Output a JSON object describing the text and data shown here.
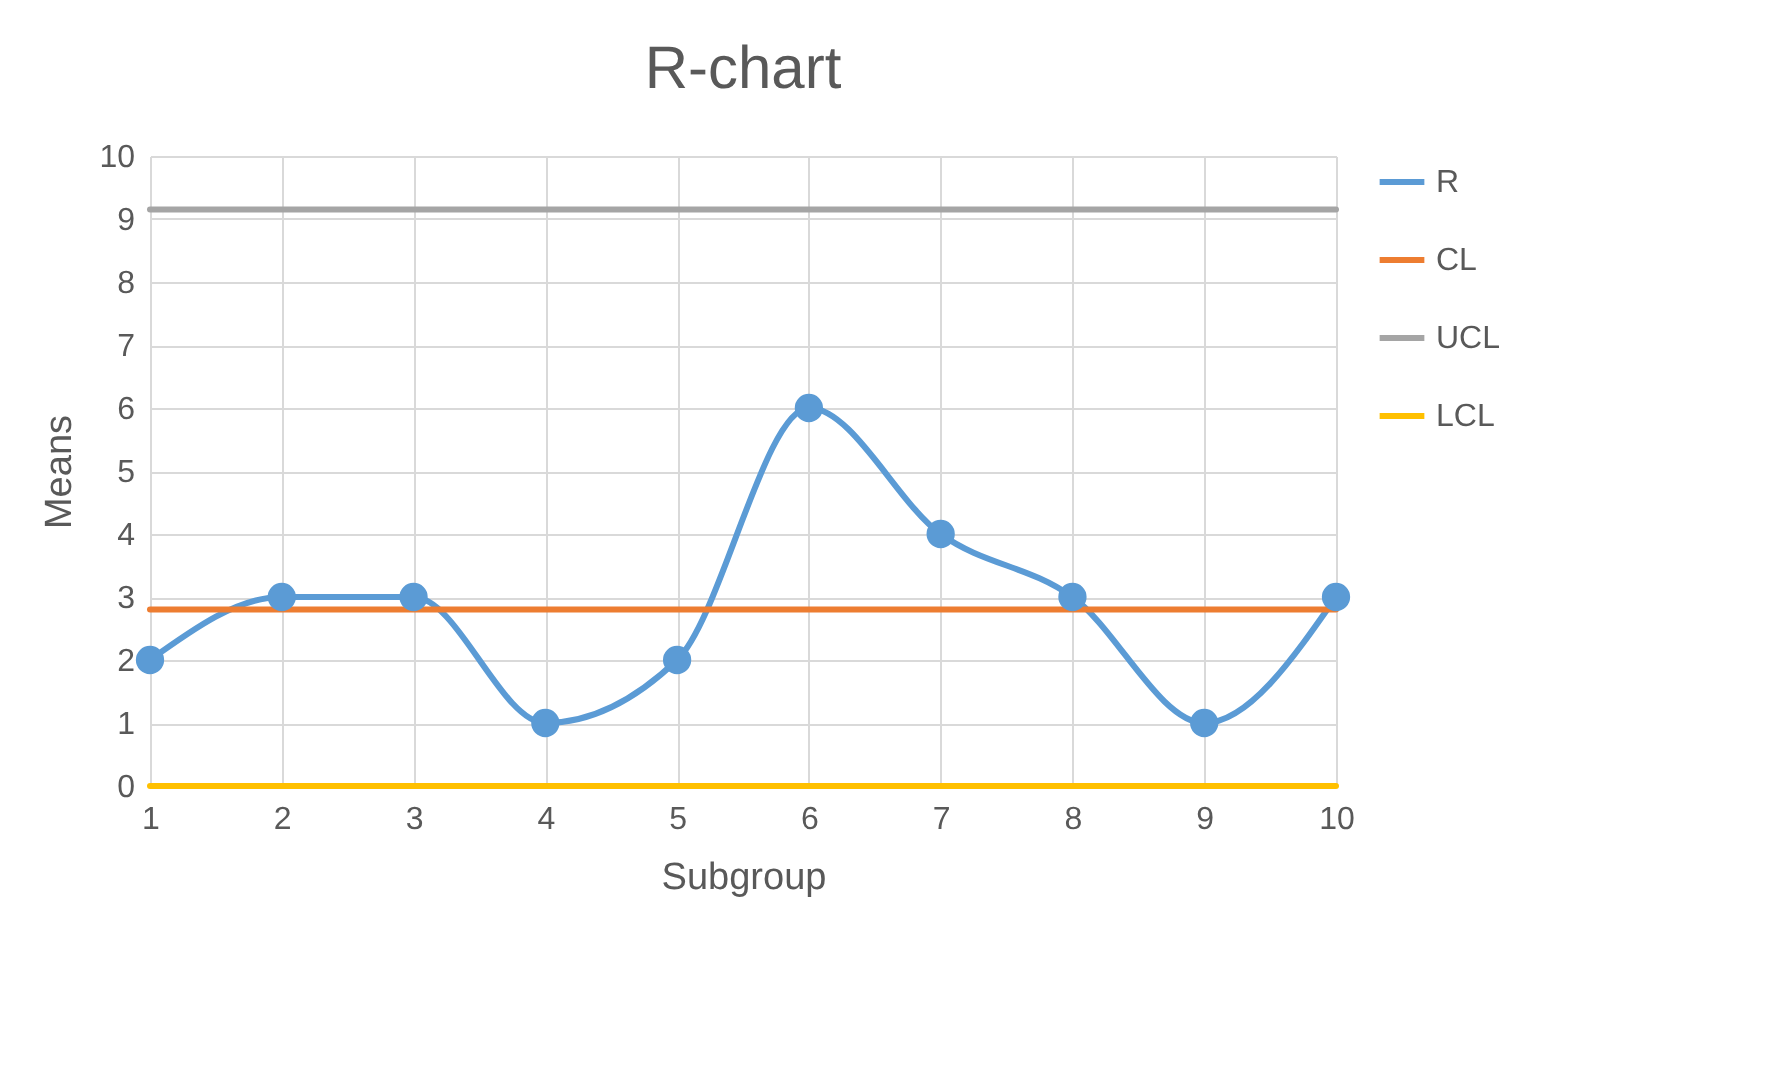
{
  "chart_data": {
    "type": "line",
    "title": "R-chart",
    "xlabel": "Subgroup",
    "ylabel": "Means",
    "categories": [
      "1",
      "2",
      "3",
      "4",
      "5",
      "6",
      "7",
      "8",
      "9",
      "10"
    ],
    "series": [
      {
        "name": "R",
        "color": "#5b9bd5",
        "values": [
          2,
          3,
          3,
          1,
          2,
          6,
          4,
          3,
          1,
          3
        ]
      },
      {
        "name": "CL",
        "color": "#ed7d31",
        "marker": "none",
        "values": [
          2.8,
          2.8,
          2.8,
          2.8,
          2.8,
          2.8,
          2.8,
          2.8,
          2.8,
          2.8
        ]
      },
      {
        "name": "UCL",
        "color": "#a5a5a5",
        "marker": "none",
        "values": [
          9.15,
          9.15,
          9.15,
          9.15,
          9.15,
          9.15,
          9.15,
          9.15,
          9.15,
          9.15
        ]
      },
      {
        "name": "LCL",
        "color": "#ffc000",
        "marker": "none",
        "values": [
          0,
          0,
          0,
          0,
          0,
          0,
          0,
          0,
          0,
          0
        ]
      }
    ],
    "ylim": [
      0,
      10
    ],
    "yticks": [
      0,
      1,
      2,
      3,
      4,
      5,
      6,
      7,
      8,
      9,
      10
    ],
    "grid": true,
    "legend": "right",
    "marker": "circle"
  }
}
